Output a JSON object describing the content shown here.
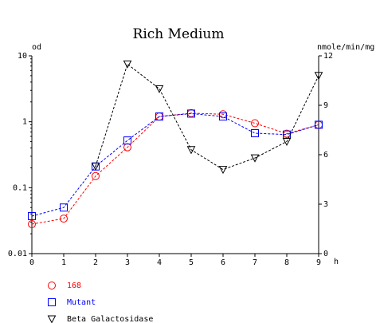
{
  "chart_data": {
    "type": "line",
    "title": "Rich Medium",
    "xlabel": "h",
    "ylabel_left": "od",
    "ylabel_right": "nmole/min/mg",
    "x": [
      0,
      1,
      2,
      3,
      4,
      5,
      6,
      7,
      8,
      9
    ],
    "xlim": [
      0,
      9
    ],
    "x_ticks": [
      "0",
      "1",
      "2",
      "3",
      "4",
      "5",
      "6",
      "7",
      "8",
      "9"
    ],
    "y_left": {
      "scale": "log",
      "lim": [
        0.01,
        10
      ],
      "ticks": [
        "0.01",
        "0.1",
        "1",
        "10"
      ]
    },
    "y_right": {
      "scale": "linear",
      "lim": [
        0,
        12
      ],
      "ticks": [
        "0",
        "3",
        "6",
        "9",
        "12"
      ]
    },
    "grid": false,
    "legend_position": "bottom-left",
    "series": [
      {
        "name": "168",
        "axis": "left",
        "marker": "circle",
        "color": "#ff0000",
        "values": [
          0.028,
          0.034,
          0.15,
          0.41,
          1.2,
          1.35,
          1.3,
          0.95,
          0.66,
          0.9
        ]
      },
      {
        "name": "Mutant",
        "axis": "left",
        "marker": "square",
        "color": "#0000ff",
        "values": [
          0.037,
          0.05,
          0.21,
          0.52,
          1.2,
          1.33,
          1.2,
          0.67,
          0.64,
          0.9
        ]
      },
      {
        "name": "Beta Galactosidase",
        "axis": "right",
        "marker": "triangle-down",
        "color": "#000000",
        "values": [
          null,
          null,
          5.3,
          11.5,
          10.0,
          6.3,
          5.1,
          5.8,
          6.8,
          10.8
        ]
      }
    ]
  }
}
